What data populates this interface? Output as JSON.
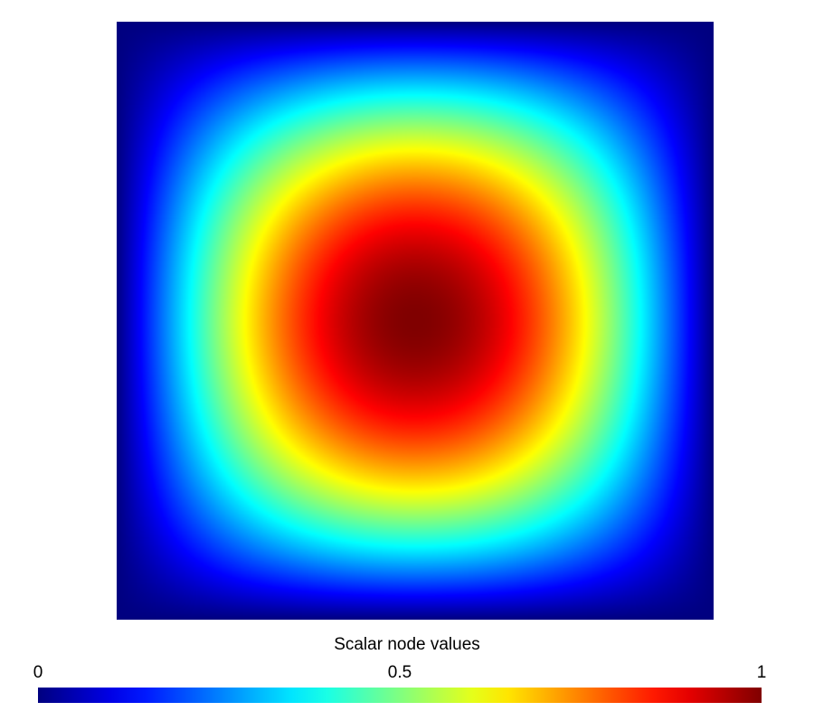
{
  "chart_data": {
    "type": "heatmap",
    "title": "",
    "field_function": "sin(pi*x) * sin(pi*y)",
    "domain": {
      "x": [
        0,
        1
      ],
      "y": [
        0,
        1
      ]
    },
    "value_range": [
      0,
      1
    ],
    "peak": {
      "x": 0.5,
      "y": 0.5,
      "value": 1
    },
    "colormap": "jet",
    "colormap_stops": [
      "#00008f",
      "#0000ff",
      "#00ffff",
      "#ffff00",
      "#ff0000",
      "#800000"
    ],
    "colorbar": {
      "label": "Scalar node values",
      "ticks": [
        {
          "value": 0,
          "label": "0"
        },
        {
          "value": 0.5,
          "label": "0.5"
        },
        {
          "value": 1,
          "label": "1"
        }
      ],
      "placement": "bottom"
    }
  }
}
